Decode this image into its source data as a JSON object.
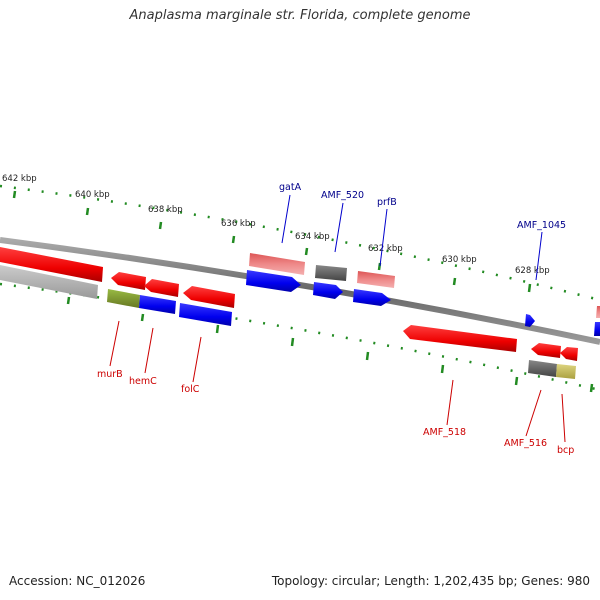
{
  "title": "Anaplasma marginale str. Florida, complete genome",
  "footer": {
    "accession": "Accession: NC_012026",
    "summary": "Topology: circular; Length: 1,202,435 bp; Genes: 980"
  },
  "colors": {
    "cds_forward": "#0000ee",
    "cds_reverse": "#ee0000",
    "rna_forward": "#ee7777",
    "rna_reverse": "#bbbbbb",
    "gray_feature": "#666666",
    "olive_feature": "#88aa33",
    "khaki_feature": "#c8c060",
    "tick": "#228b22",
    "backbone": "#888888",
    "forward_label": "#00008b",
    "reverse_label": "#cc0000"
  },
  "ruler_labels": [
    "642 kbp",
    "640 kbp",
    "638 kbp",
    "636 kbp",
    "634 kbp",
    "632 kbp",
    "630 kbp",
    "628 kbp"
  ],
  "forward_labels": [
    "gatA",
    "AMF_520",
    "prfB",
    "AMF_1045"
  ],
  "reverse_labels": [
    "murB",
    "hemC",
    "folC",
    "AMF_518",
    "AMF_516",
    "bcp"
  ]
}
